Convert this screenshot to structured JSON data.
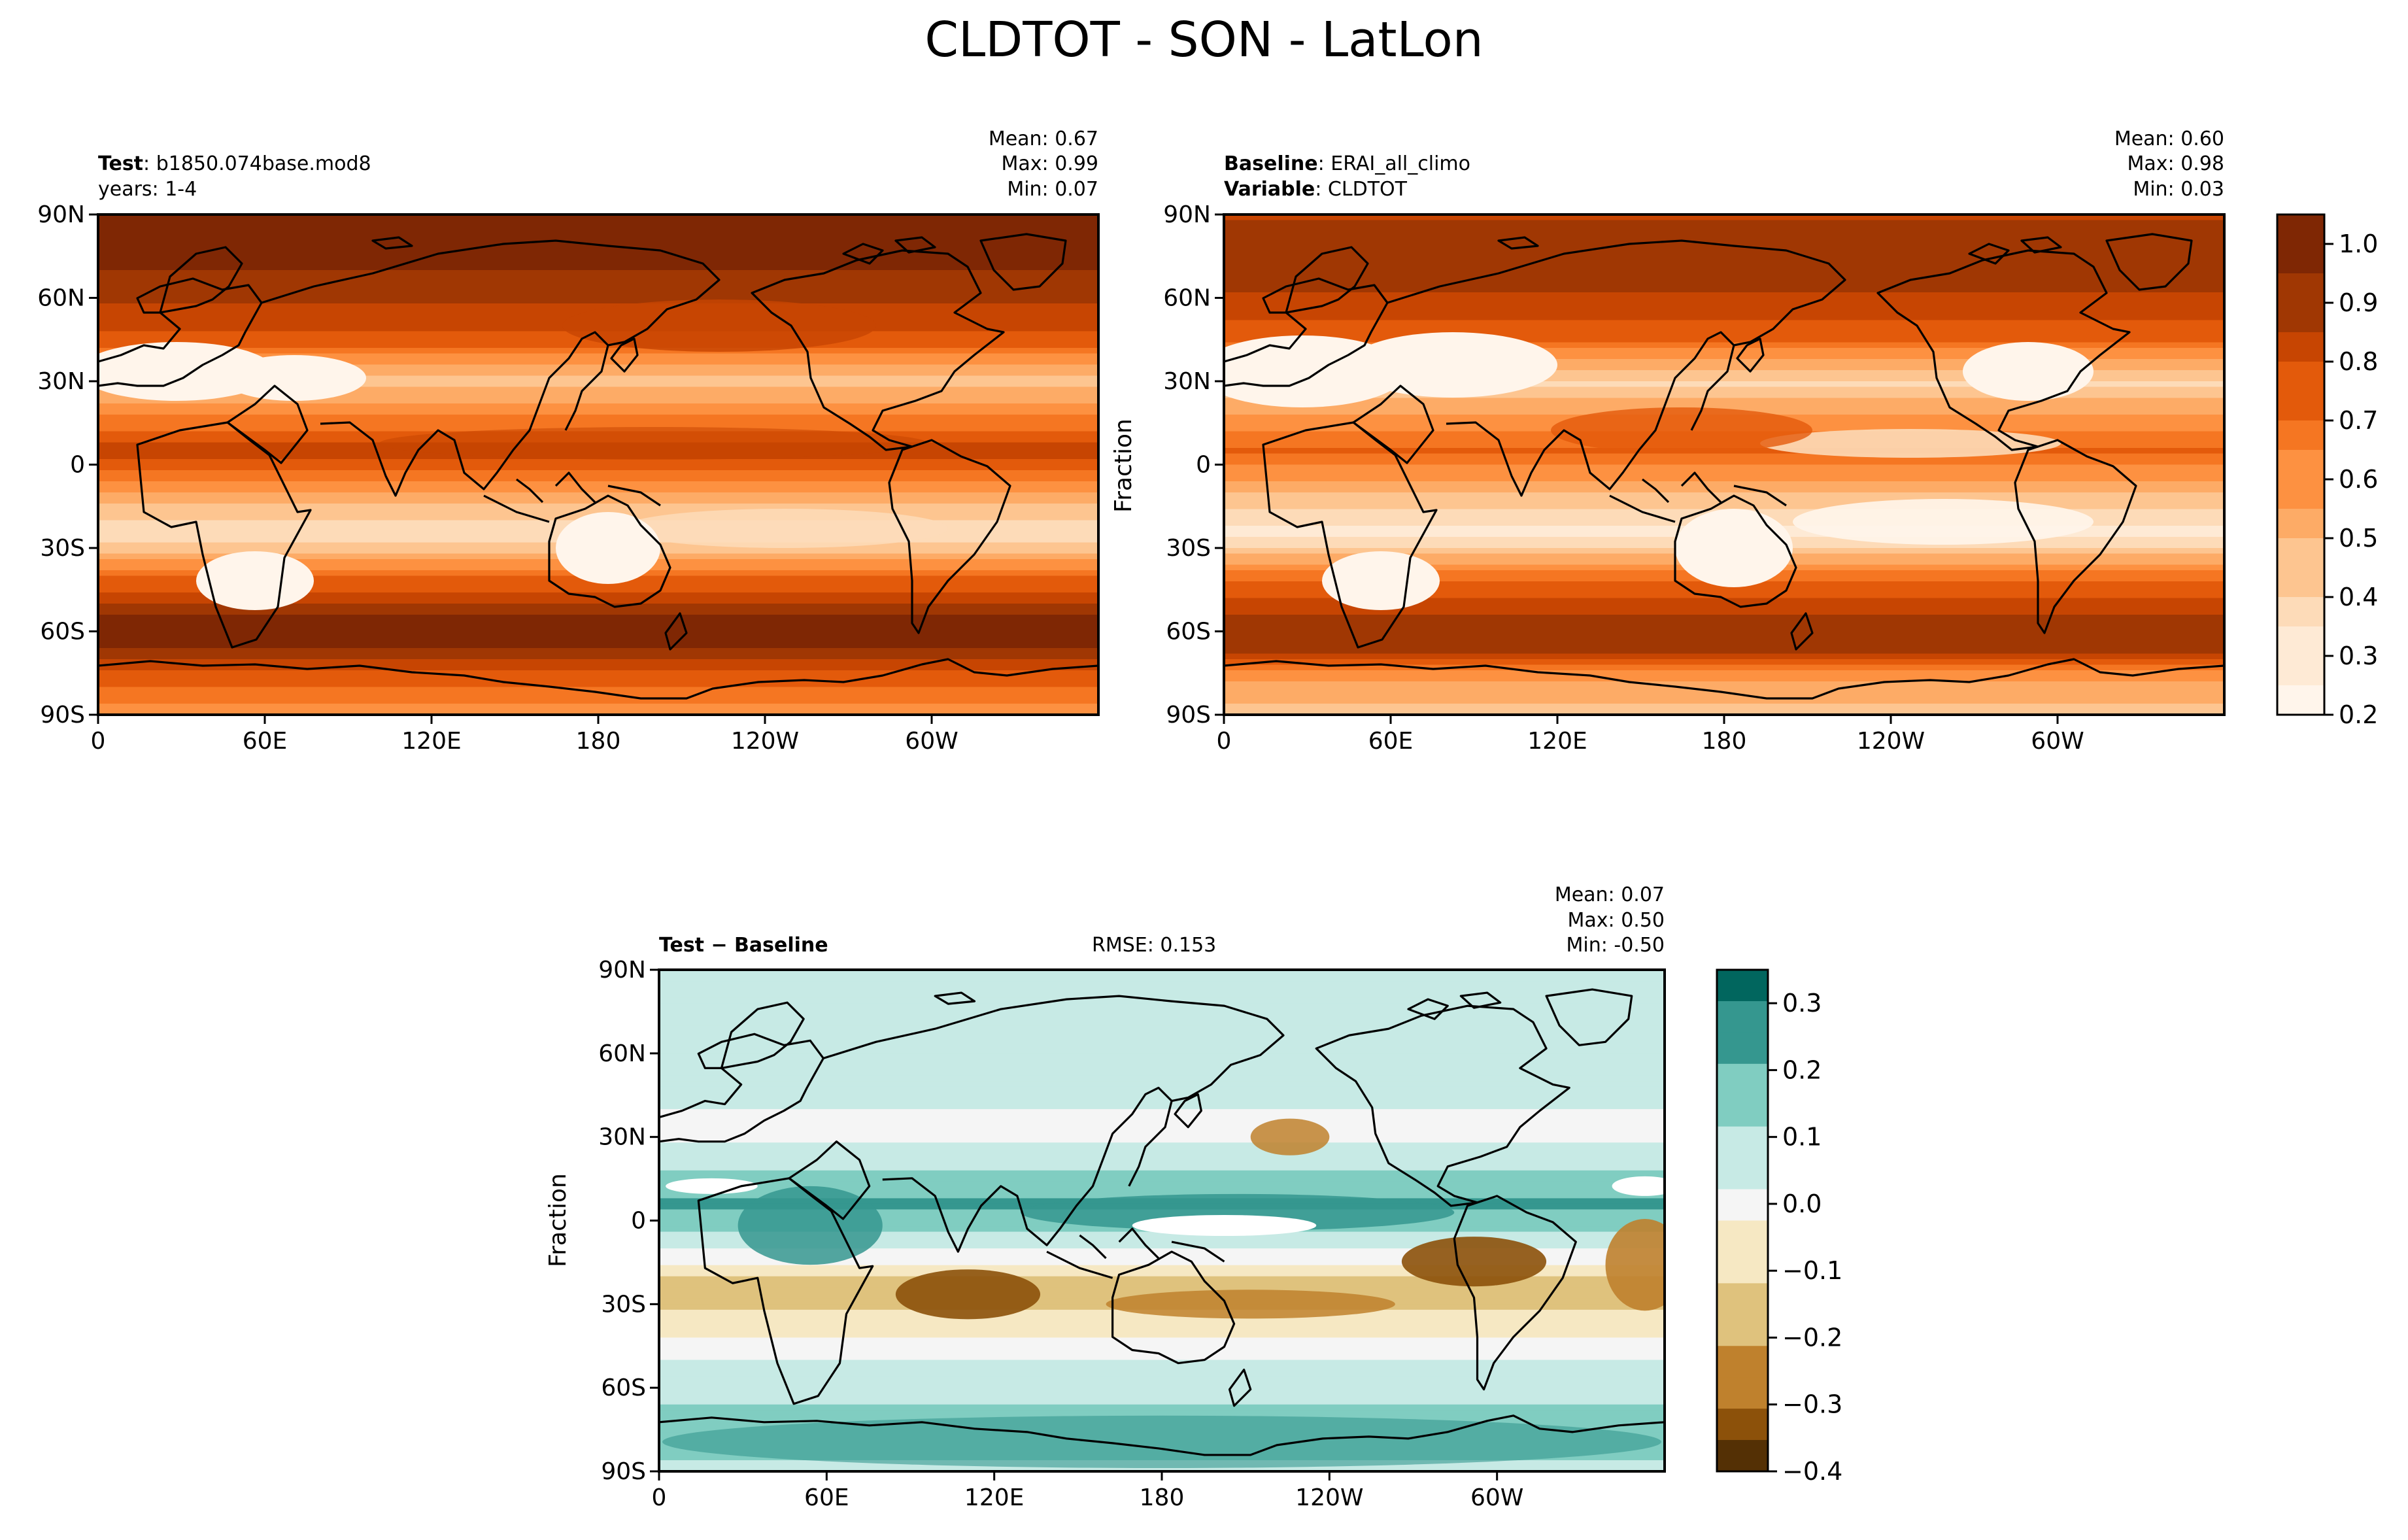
{
  "figure": {
    "title": "CLDTOT - SON - LatLon"
  },
  "colors": {
    "seq": [
      "#fff5eb",
      "#feead5",
      "#fddbb8",
      "#fdc590",
      "#fdab66",
      "#fd9141",
      "#f57622",
      "#e35a0b",
      "#c74502",
      "#a03703",
      "#7f2704"
    ],
    "div": [
      "#543005",
      "#8c510a",
      "#bf812d",
      "#dfc27d",
      "#f6e8c3",
      "#f5f5f5",
      "#c7eae5",
      "#80cdc1",
      "#35978f",
      "#01665e",
      "#003c30"
    ],
    "land_outline": "#000000"
  },
  "panels": {
    "test": {
      "label_bold": "Test",
      "label_text": "b1850.074base.mod8",
      "line2": "years: 1-4",
      "stats": [
        "Mean:  0.67",
        "Max:  0.99",
        "Min:  0.07"
      ]
    },
    "baseline": {
      "label_bold": "Baseline",
      "label_text": "ERAI_all_climo",
      "line2_bold": "Variable",
      "line2_text": "CLDTOT",
      "stats": [
        "Mean:  0.60",
        "Max:  0.98",
        "Min:  0.03"
      ],
      "ylabel": "Fraction"
    },
    "diff": {
      "label": "Test − Baseline",
      "rmse": "RMSE: 0.153",
      "stats": [
        "Mean:  0.07",
        "Max:  0.50",
        "Min: -0.50"
      ],
      "ylabel": "Fraction"
    }
  },
  "chart_data": [
    {
      "type": "heatmap",
      "name": "Test",
      "x_ticks": [
        "0",
        "60E",
        "120E",
        "180",
        "120W",
        "60W"
      ],
      "y_ticks": [
        "90N",
        "60N",
        "30N",
        "0",
        "30S",
        "60S",
        "90S"
      ],
      "lat_profile": [
        [
          90,
          0.93
        ],
        [
          75,
          0.95
        ],
        [
          60,
          0.88
        ],
        [
          45,
          0.75
        ],
        [
          30,
          0.45
        ],
        [
          15,
          0.68
        ],
        [
          5,
          0.82
        ],
        [
          -10,
          0.55
        ],
        [
          -25,
          0.35
        ],
        [
          -40,
          0.7
        ],
        [
          -55,
          0.93
        ],
        [
          -65,
          0.97
        ],
        [
          -75,
          0.75
        ],
        [
          -90,
          0.6
        ]
      ],
      "value_range": [
        0.07,
        0.99
      ]
    },
    {
      "type": "heatmap",
      "name": "Baseline",
      "x_ticks": [
        "0",
        "60E",
        "120E",
        "180",
        "120W",
        "60W"
      ],
      "y_ticks": [
        "90N",
        "60N",
        "30N",
        "0",
        "30S",
        "60S",
        "90S"
      ],
      "lat_profile": [
        [
          90,
          0.85
        ],
        [
          75,
          0.88
        ],
        [
          60,
          0.85
        ],
        [
          45,
          0.72
        ],
        [
          30,
          0.4
        ],
        [
          15,
          0.6
        ],
        [
          5,
          0.72
        ],
        [
          -10,
          0.5
        ],
        [
          -25,
          0.3
        ],
        [
          -40,
          0.68
        ],
        [
          -55,
          0.88
        ],
        [
          -65,
          0.92
        ],
        [
          -75,
          0.6
        ],
        [
          -90,
          0.45
        ]
      ],
      "value_range": [
        0.03,
        0.98
      ],
      "colorbar": {
        "ticks": [
          "1.0",
          "0.9",
          "0.8",
          "0.7",
          "0.6",
          "0.5",
          "0.4",
          "0.3",
          "0.2"
        ],
        "range": [
          0.2,
          1.05
        ]
      }
    },
    {
      "type": "heatmap",
      "name": "Test − Baseline",
      "x_ticks": [
        "0",
        "60E",
        "120E",
        "180",
        "120W",
        "60W"
      ],
      "y_ticks": [
        "90N",
        "60N",
        "30N",
        "0",
        "30S",
        "60S",
        "90S"
      ],
      "lat_profile": [
        [
          90,
          0.05
        ],
        [
          75,
          0.08
        ],
        [
          60,
          0.1
        ],
        [
          45,
          0.05
        ],
        [
          30,
          0.02
        ],
        [
          15,
          0.15
        ],
        [
          5,
          0.22
        ],
        [
          -10,
          0.05
        ],
        [
          -25,
          -0.2
        ],
        [
          -40,
          -0.05
        ],
        [
          -55,
          0.08
        ],
        [
          -65,
          0.12
        ],
        [
          -75,
          0.2
        ],
        [
          -90,
          0.1
        ]
      ],
      "value_range": [
        -0.5,
        0.5
      ],
      "colorbar": {
        "ticks": [
          "0.3",
          "0.2",
          "0.1",
          "0.0",
          "−0.1",
          "−0.2",
          "−0.3",
          "−0.4"
        ],
        "range": [
          -0.4,
          0.35
        ]
      }
    }
  ]
}
